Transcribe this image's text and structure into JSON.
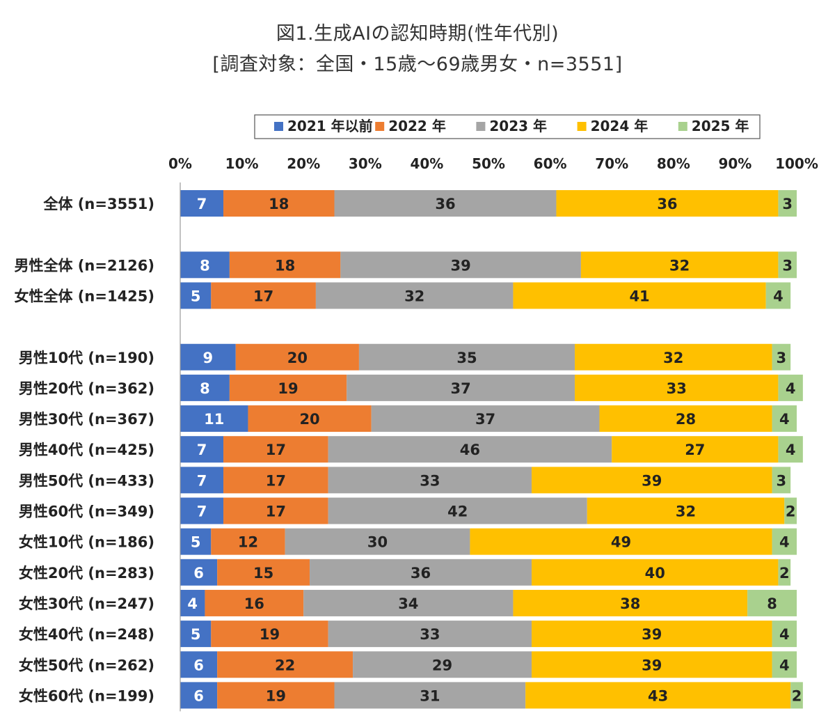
{
  "title_line1": "図1.生成AIの認知時期(性年代別)",
  "title_line2": "[調査対象：全国・15歳～69歳男女・n=3551]",
  "chart_data": {
    "type": "bar",
    "orientation": "horizontal",
    "stacked": true,
    "percent_stacked": true,
    "xlim": [
      0,
      100
    ],
    "x_ticks": [
      "0%",
      "10%",
      "20%",
      "30%",
      "40%",
      "50%",
      "60%",
      "70%",
      "80%",
      "90%",
      "100%"
    ],
    "legend_position": "top",
    "grid": false,
    "series": [
      {
        "name": "2021 年以前",
        "color": "#4472C4",
        "label_color": "#ffffff"
      },
      {
        "name": "2022 年",
        "color": "#ED7D31",
        "label_color": "#222222"
      },
      {
        "name": "2023 年",
        "color": "#A5A5A5",
        "label_color": "#222222"
      },
      {
        "name": "2024 年",
        "color": "#FFC000",
        "label_color": "#222222"
      },
      {
        "name": "2025 年",
        "color": "#A9D18E",
        "label_color": "#222222"
      }
    ],
    "groups": [
      {
        "rows": [
          {
            "label": "全体 (n=3551)",
            "values": [
              7,
              18,
              36,
              36,
              3
            ]
          }
        ]
      },
      {
        "rows": [
          {
            "label": "男性全体 (n=2126)",
            "values": [
              8,
              18,
              39,
              32,
              3
            ]
          },
          {
            "label": "女性全体 (n=1425)",
            "values": [
              5,
              17,
              32,
              41,
              4
            ]
          }
        ]
      },
      {
        "rows": [
          {
            "label": "男性10代 (n=190)",
            "values": [
              9,
              20,
              35,
              32,
              3
            ]
          },
          {
            "label": "男性20代 (n=362)",
            "values": [
              8,
              19,
              37,
              33,
              4
            ]
          },
          {
            "label": "男性30代 (n=367)",
            "values": [
              11,
              20,
              37,
              28,
              4
            ]
          },
          {
            "label": "男性40代 (n=425)",
            "values": [
              7,
              17,
              46,
              27,
              4
            ]
          },
          {
            "label": "男性50代 (n=433)",
            "values": [
              7,
              17,
              33,
              39,
              3
            ]
          },
          {
            "label": "男性60代 (n=349)",
            "values": [
              7,
              17,
              42,
              32,
              2
            ]
          },
          {
            "label": "女性10代 (n=186)",
            "values": [
              5,
              12,
              30,
              49,
              4
            ]
          },
          {
            "label": "女性20代 (n=283)",
            "values": [
              6,
              15,
              36,
              40,
              2
            ]
          },
          {
            "label": "女性30代 (n=247)",
            "values": [
              4,
              16,
              34,
              38,
              8
            ]
          },
          {
            "label": "女性40代 (n=248)",
            "values": [
              5,
              19,
              33,
              39,
              4
            ]
          },
          {
            "label": "女性50代 (n=262)",
            "values": [
              6,
              22,
              29,
              39,
              4
            ]
          },
          {
            "label": "女性60代 (n=199)",
            "values": [
              6,
              19,
              31,
              43,
              2
            ]
          }
        ]
      }
    ]
  }
}
